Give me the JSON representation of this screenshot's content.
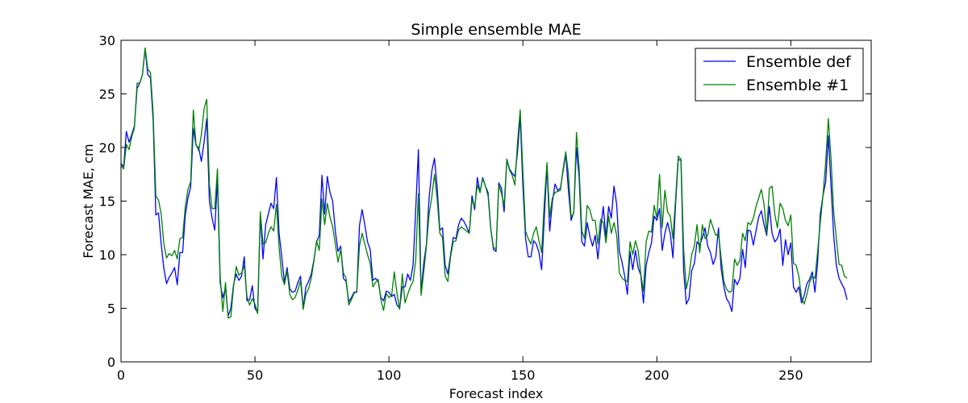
{
  "chart_data": {
    "type": "line",
    "title": "Simple ensemble MAE",
    "xlabel": "Forecast index",
    "ylabel": "Forecast MAE, cm",
    "xlim": [
      0,
      280
    ],
    "ylim": [
      0,
      30
    ],
    "xticks": [
      0,
      50,
      100,
      150,
      200,
      250
    ],
    "yticks": [
      0,
      5,
      10,
      15,
      20,
      25,
      30
    ],
    "grid": false,
    "legend_position": "top-right",
    "series": [
      {
        "name": "Ensemble def",
        "color": "#0000ff",
        "x_start": 0,
        "x_step": 1,
        "values": [
          18.5,
          18.2,
          21.5,
          20.5,
          21.2,
          22.0,
          25.5,
          26.0,
          26.8,
          29.2,
          26.8,
          26.5,
          22.5,
          13.7,
          13.9,
          11.0,
          8.7,
          7.3,
          7.9,
          8.3,
          8.8,
          7.2,
          10.2,
          10.2,
          13.7,
          15.3,
          16.3,
          21.8,
          20.2,
          20.0,
          18.7,
          20.5,
          22.7,
          15.0,
          13.4,
          12.3,
          17.1,
          7.4,
          6.0,
          6.9,
          4.3,
          5.0,
          7.2,
          8.2,
          7.6,
          8.0,
          9.8,
          5.7,
          5.8,
          7.1,
          5.0,
          4.6,
          13.8,
          9.6,
          12.8,
          13.8,
          14.8,
          14.3,
          17.2,
          12.0,
          9.8,
          7.4,
          8.8,
          6.8,
          6.5,
          6.6,
          7.4,
          8.0,
          5.0,
          7.0,
          7.5,
          8.2,
          9.5,
          11.2,
          11.8,
          17.4,
          13.8,
          17.3,
          15.8,
          15.0,
          12.2,
          10.3,
          10.8,
          7.8,
          7.5,
          5.6,
          6.0,
          6.5,
          6.5,
          12.7,
          14.2,
          12.8,
          11.2,
          10.5,
          7.6,
          7.8,
          7.5,
          6.0,
          5.7,
          6.6,
          6.5,
          6.1,
          6.3,
          5.3,
          5.0,
          7.0,
          7.0,
          8.2,
          7.6,
          9.0,
          14.2,
          19.8,
          6.5,
          9.2,
          11.0,
          15.3,
          17.8,
          19.0,
          16.3,
          12.3,
          12.5,
          9.0,
          8.2,
          10.0,
          11.6,
          11.5,
          12.8,
          13.4,
          13.1,
          12.6,
          12.0,
          15.5,
          14.2,
          17.2,
          15.8,
          17.2,
          16.4,
          15.8,
          12.5,
          10.5,
          10.3,
          16.7,
          16.2,
          14.0,
          18.9,
          18.0,
          17.6,
          17.3,
          19.6,
          22.9,
          16.4,
          11.5,
          9.8,
          9.8,
          11.3,
          11.0,
          10.2,
          8.6,
          13.5,
          18.3,
          12.2,
          14.9,
          16.6,
          16.0,
          16.2,
          17.8,
          19.4,
          16.0,
          13.2,
          14.0,
          20.0,
          17.2,
          11.2,
          10.8,
          13.0,
          11.7,
          10.8,
          11.8,
          9.6,
          12.3,
          14.5,
          11.6,
          14.5,
          13.4,
          16.4,
          14.7,
          10.3,
          9.3,
          8.0,
          6.3,
          10.3,
          8.6,
          10.4,
          8.8,
          8.1,
          5.5,
          9.0,
          10.2,
          11.1,
          13.6,
          13.2,
          14.3,
          10.4,
          12.0,
          13.0,
          12.0,
          9.7,
          14.8,
          18.9,
          18.8,
          8.5,
          5.4,
          5.9,
          8.5,
          9.2,
          11.2,
          10.9,
          11.6,
          12.5,
          10.8,
          10.2,
          9.1,
          9.8,
          12.5,
          8.7,
          7.0,
          5.9,
          5.5,
          4.7,
          7.7,
          7.2,
          7.8,
          10.5,
          8.8,
          12.3,
          12.2,
          10.9,
          12.2,
          13.5,
          14.1,
          12.8,
          11.8,
          14.5,
          12.0,
          11.2,
          11.5,
          12.4,
          9.0,
          11.4,
          10.0,
          11.1,
          7.0,
          6.5,
          7.0,
          5.5,
          6.2,
          7.3,
          7.7,
          8.4,
          6.5,
          9.3,
          13.8,
          15.5,
          16.8,
          21.1,
          16.5,
          11.8,
          9.0,
          7.8,
          7.3,
          6.8,
          5.8
        ]
      },
      {
        "name": "Ensemble #1",
        "color": "#008000",
        "x_start": 0,
        "x_step": 1,
        "values": [
          18.3,
          18.0,
          20.3,
          19.8,
          21.0,
          21.8,
          26.0,
          26.0,
          26.8,
          29.3,
          27.3,
          27.0,
          23.2,
          15.5,
          15.1,
          13.8,
          11.0,
          9.7,
          10.1,
          9.9,
          10.4,
          9.6,
          11.5,
          11.6,
          14.5,
          16.1,
          16.8,
          23.5,
          20.3,
          19.7,
          21.2,
          23.6,
          24.5,
          16.5,
          14.3,
          14.3,
          18.0,
          8.0,
          4.7,
          7.4,
          4.1,
          4.2,
          7.0,
          8.9,
          8.1,
          8.3,
          9.0,
          6.1,
          5.3,
          5.9,
          5.4,
          4.5,
          14.0,
          11.0,
          11.1,
          12.0,
          12.6,
          12.2,
          14.7,
          10.7,
          8.0,
          7.2,
          8.5,
          6.3,
          5.8,
          6.0,
          6.7,
          7.6,
          4.9,
          6.3,
          6.8,
          7.8,
          9.4,
          11.3,
          10.4,
          15.2,
          12.8,
          14.8,
          13.5,
          12.6,
          11.0,
          9.3,
          10.5,
          8.3,
          7.8,
          5.3,
          5.8,
          6.4,
          6.6,
          10.8,
          12.0,
          11.0,
          10.0,
          9.2,
          7.0,
          7.4,
          7.7,
          5.8,
          4.8,
          6.4,
          6.0,
          6.2,
          8.4,
          6.4,
          4.9,
          8.2,
          5.5,
          6.3,
          7.0,
          7.5,
          9.5,
          15.7,
          6.2,
          8.4,
          10.8,
          13.8,
          15.4,
          17.5,
          15.2,
          12.0,
          11.6,
          8.0,
          7.5,
          9.8,
          11.2,
          11.3,
          12.3,
          12.6,
          12.4,
          12.2,
          12.0,
          15.1,
          14.5,
          16.5,
          15.8,
          17.1,
          16.4,
          15.5,
          12.4,
          10.7,
          10.5,
          16.5,
          15.7,
          14.6,
          18.8,
          17.9,
          17.4,
          16.5,
          20.5,
          23.5,
          17.8,
          12.2,
          11.5,
          11.0,
          12.0,
          12.6,
          11.3,
          10.2,
          15.0,
          18.6,
          13.5,
          15.3,
          15.8,
          15.9,
          16.0,
          18.0,
          19.6,
          17.5,
          13.5,
          13.9,
          21.4,
          18.0,
          12.2,
          11.5,
          14.6,
          14.2,
          13.2,
          13.2,
          11.0,
          13.3,
          13.0,
          11.1,
          13.6,
          12.0,
          13.0,
          11.8,
          8.3,
          7.8,
          7.6,
          7.5,
          11.2,
          10.0,
          11.3,
          10.4,
          8.2,
          6.6,
          11.2,
          12.2,
          12.1,
          14.6,
          13.4,
          17.5,
          12.5,
          16.0,
          14.0,
          13.6,
          11.5,
          15.3,
          19.2,
          18.9,
          10.5,
          6.8,
          8.0,
          10.0,
          10.8,
          12.8,
          10.2,
          12.8,
          11.5,
          11.8,
          13.3,
          12.5,
          11.8,
          12.0,
          9.7,
          7.5,
          6.8,
          6.5,
          6.6,
          9.6,
          9.0,
          9.5,
          12.0,
          11.3,
          13.0,
          12.8,
          13.4,
          14.5,
          15.3,
          16.1,
          14.7,
          12.0,
          16.2,
          16.4,
          13.8,
          12.5,
          14.8,
          14.3,
          13.2,
          12.7,
          13.7,
          9.2,
          9.0,
          8.0,
          6.0,
          5.4,
          6.3,
          7.4,
          8.0,
          7.8,
          10.3,
          13.0,
          15.5,
          18.6,
          22.7,
          19.0,
          14.0,
          11.5,
          9.1,
          9.0,
          8.0,
          7.8
        ]
      }
    ]
  }
}
